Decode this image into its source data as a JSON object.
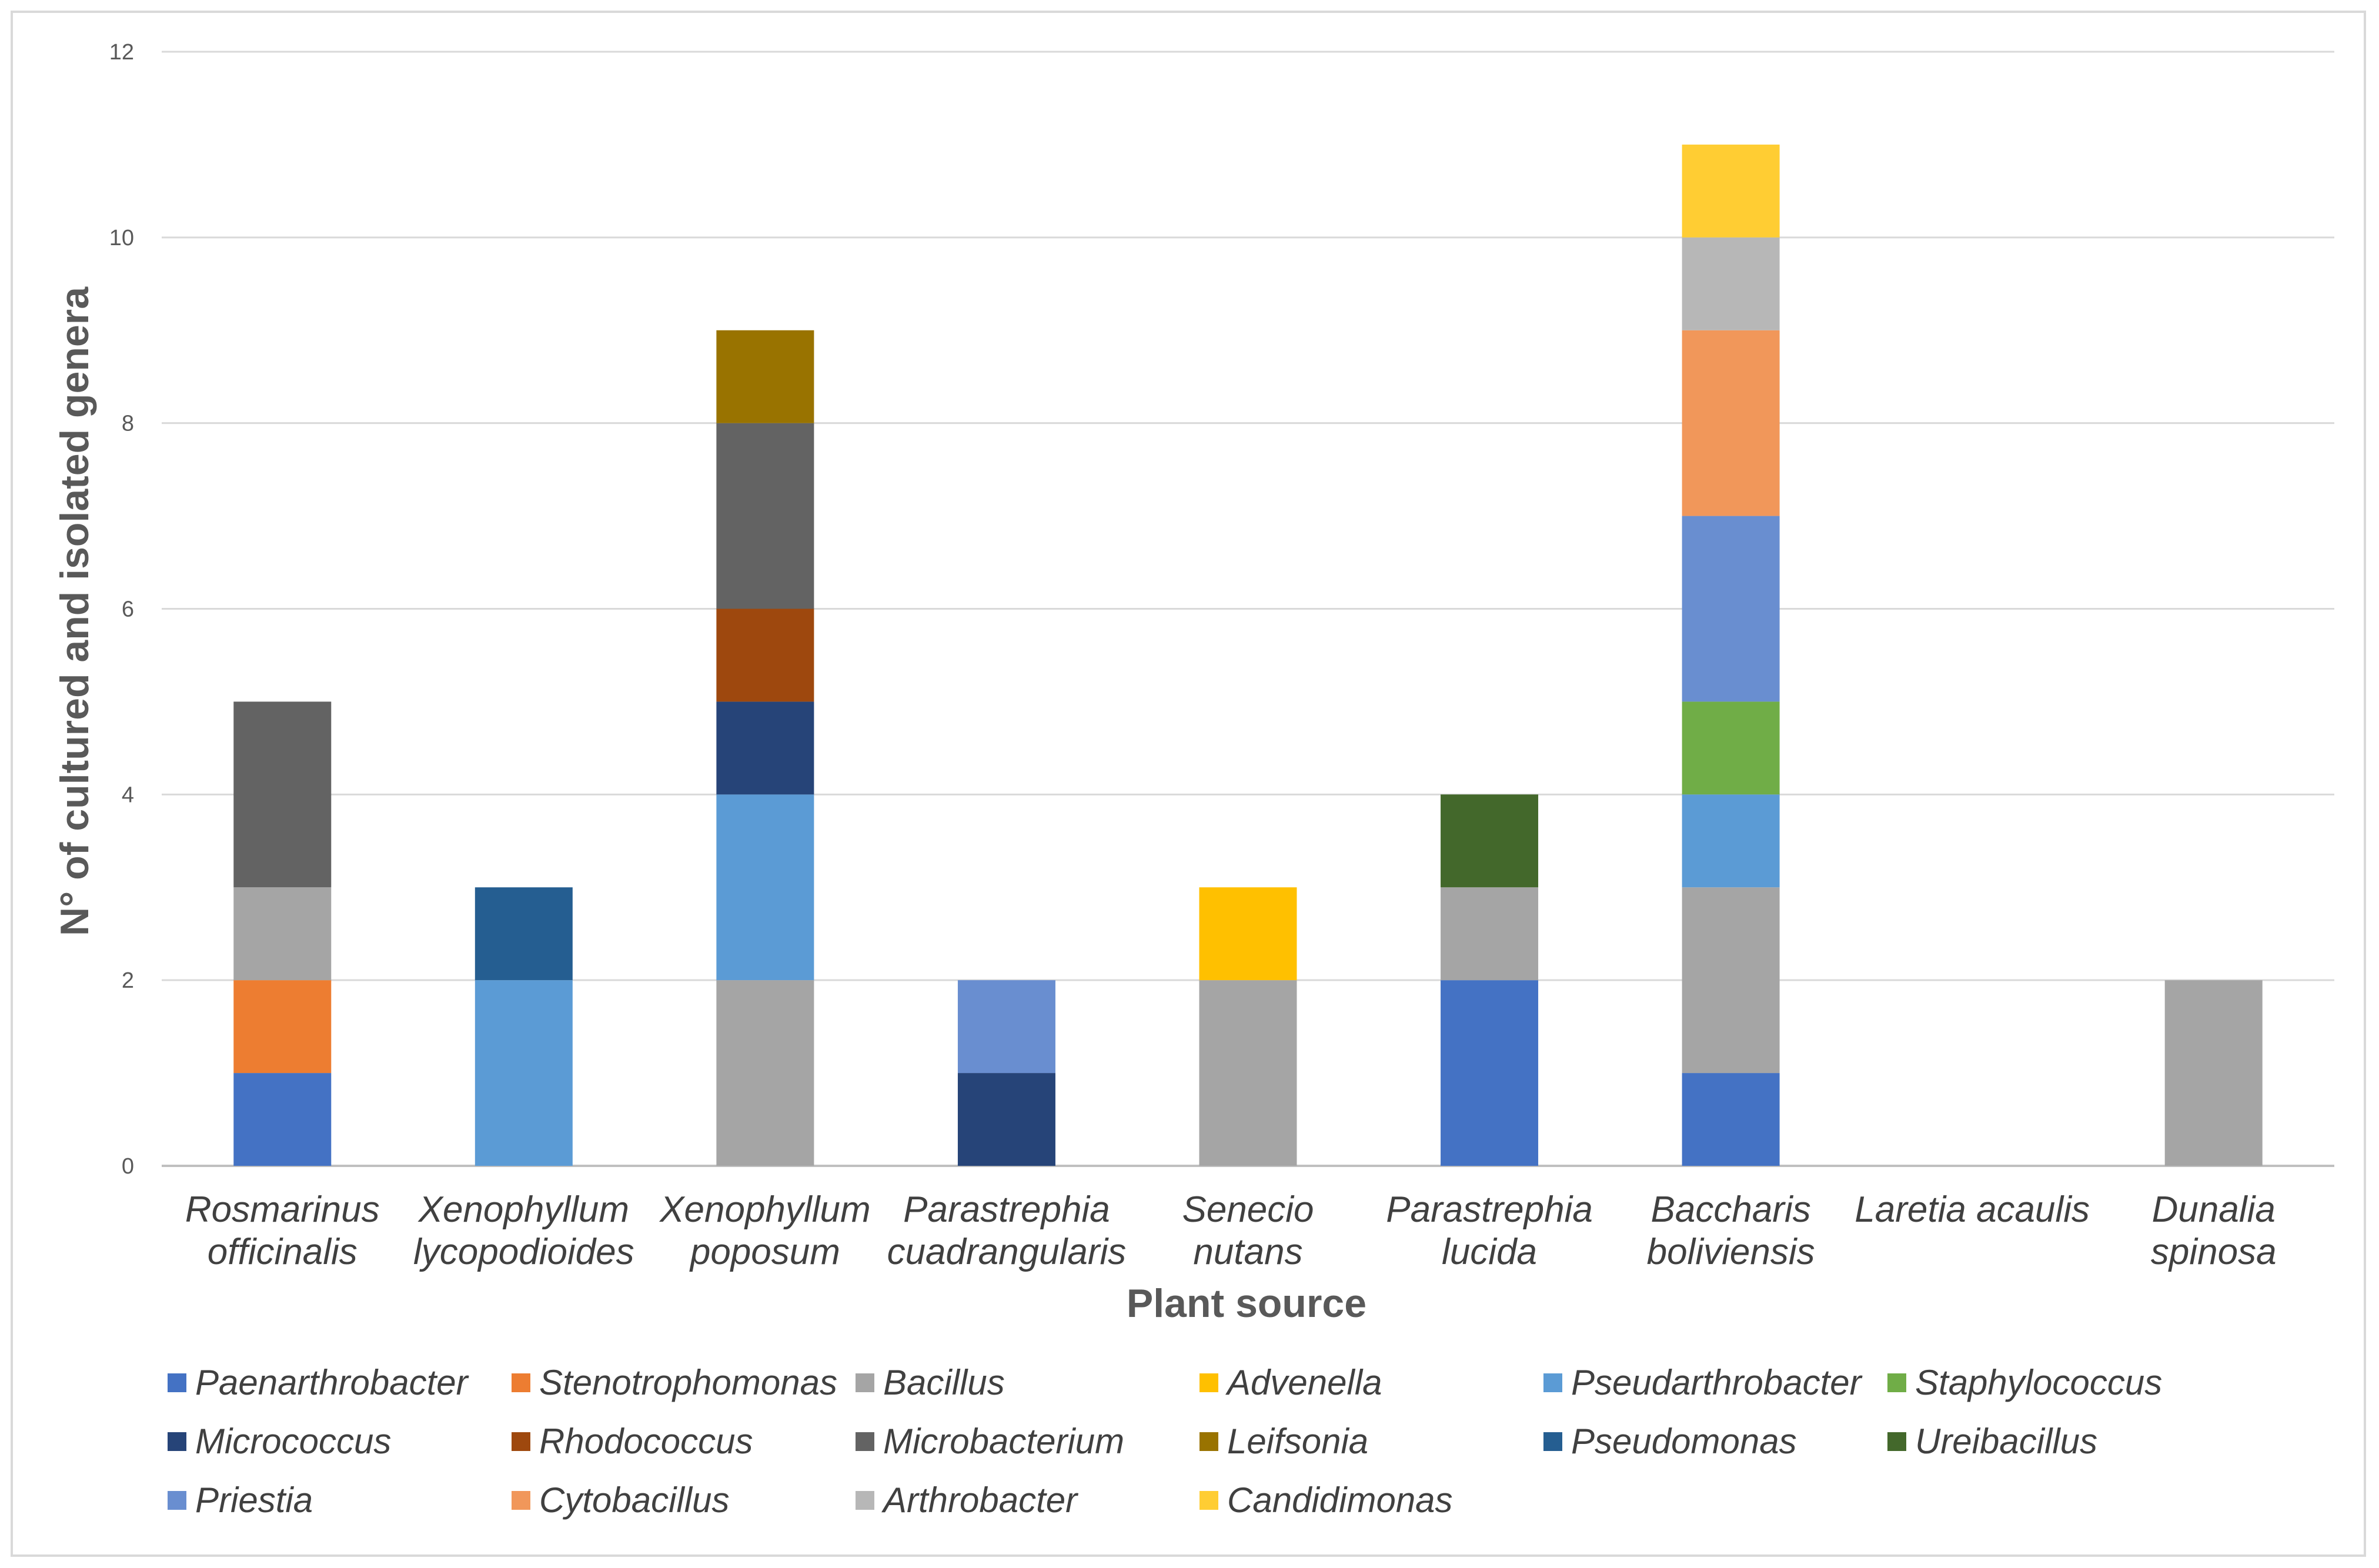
{
  "chart_data": {
    "type": "bar",
    "stacked": true,
    "xlabel": "Plant source",
    "ylabel": "N° of cultured and isolated genera",
    "ylim": [
      0,
      12
    ],
    "yticks": [
      0,
      2,
      4,
      6,
      8,
      10,
      12
    ],
    "grid": true,
    "legend_position": "bottom",
    "categories": [
      [
        "Rosmarinus",
        "officinalis"
      ],
      [
        "Xenophyllum",
        "lycopodioides"
      ],
      [
        "Xenophyllum",
        "poposum"
      ],
      [
        "Parastrephia",
        "cuadrangularis"
      ],
      [
        "Senecio",
        "nutans"
      ],
      [
        "Parastrephia",
        "lucida"
      ],
      [
        "Baccharis",
        "boliviensis"
      ],
      [
        "Laretia acaulis"
      ],
      [
        "Dunalia",
        "spinosa"
      ]
    ],
    "series": [
      {
        "name": "Paenarthrobacter",
        "color": "#4472C4",
        "values": [
          1,
          0,
          0,
          0,
          0,
          2,
          1,
          0,
          0
        ]
      },
      {
        "name": "Stenotrophomonas",
        "color": "#ED7D31",
        "values": [
          1,
          0,
          0,
          0,
          0,
          0,
          0,
          0,
          0
        ]
      },
      {
        "name": "Bacillus",
        "color": "#A5A5A5",
        "values": [
          1,
          0,
          2,
          0,
          2,
          1,
          2,
          0,
          2
        ]
      },
      {
        "name": "Advenella",
        "color": "#FFC000",
        "values": [
          0,
          0,
          0,
          0,
          1,
          0,
          0,
          0,
          0
        ]
      },
      {
        "name": "Pseudarthrobacter",
        "color": "#5B9BD5",
        "values": [
          0,
          2,
          2,
          0,
          0,
          0,
          1,
          0,
          0
        ]
      },
      {
        "name": "Staphylococcus",
        "color": "#70AD47",
        "values": [
          0,
          0,
          0,
          0,
          0,
          0,
          1,
          0,
          0
        ]
      },
      {
        "name": "Micrococcus",
        "color": "#264478",
        "values": [
          0,
          0,
          1,
          1,
          0,
          0,
          0,
          0,
          0
        ]
      },
      {
        "name": "Rhodococcus",
        "color": "#9E480E",
        "values": [
          0,
          0,
          1,
          0,
          0,
          0,
          0,
          0,
          0
        ]
      },
      {
        "name": "Microbacterium",
        "color": "#636363",
        "values": [
          2,
          0,
          2,
          0,
          0,
          0,
          0,
          0,
          0
        ]
      },
      {
        "name": "Leifsonia",
        "color": "#997300",
        "values": [
          0,
          0,
          1,
          0,
          0,
          0,
          0,
          0,
          0
        ]
      },
      {
        "name": "Pseudomonas",
        "color": "#255E91",
        "values": [
          0,
          1,
          0,
          0,
          0,
          0,
          0,
          0,
          0
        ]
      },
      {
        "name": "Ureibacillus",
        "color": "#43682B",
        "values": [
          0,
          0,
          0,
          0,
          0,
          1,
          0,
          0,
          0
        ]
      },
      {
        "name": "Priestia",
        "color": "#698ED0",
        "values": [
          0,
          0,
          0,
          1,
          0,
          0,
          2,
          0,
          0
        ]
      },
      {
        "name": "Cytobacillus",
        "color": "#F1975A",
        "values": [
          0,
          0,
          0,
          0,
          0,
          0,
          2,
          0,
          0
        ]
      },
      {
        "name": "Arthrobacter",
        "color": "#B7B7B7",
        "values": [
          0,
          0,
          0,
          0,
          0,
          0,
          1,
          0,
          0
        ]
      },
      {
        "name": "Candidimonas",
        "color": "#FFCD33",
        "values": [
          0,
          0,
          0,
          0,
          0,
          0,
          1,
          0,
          0
        ]
      }
    ]
  }
}
